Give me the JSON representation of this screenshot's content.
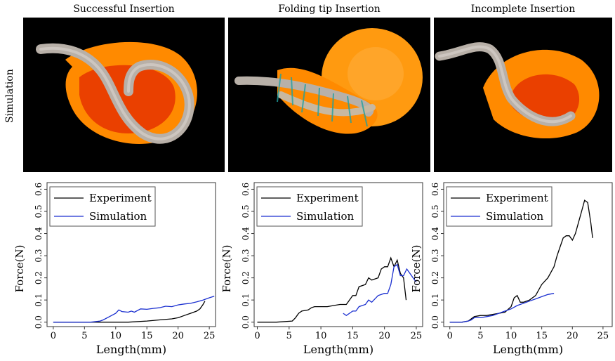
{
  "row_label": "Simulation",
  "panels": [
    {
      "title": "Successful Insertion"
    },
    {
      "title": "Folding tip Insertion"
    },
    {
      "title": "Incomplete Insertion"
    }
  ],
  "colors": {
    "experiment": "#000000",
    "simulation": "#1a2fd0",
    "tissue": "#ff8c00",
    "electrode": "#b8b0a8"
  },
  "chart_data": [
    {
      "type": "line",
      "xlabel": "Length(mm)",
      "ylabel": "Force(N)",
      "xlim": [
        -1,
        26
      ],
      "ylim": [
        -0.02,
        0.63
      ],
      "xticks": [
        0,
        5,
        10,
        15,
        20,
        25
      ],
      "yticks": [
        0.0,
        0.1,
        0.2,
        0.3,
        0.4,
        0.5,
        0.6
      ],
      "legend": "top-left",
      "series": [
        {
          "name": "Experiment",
          "x": [
            0,
            4,
            8,
            12,
            15,
            17,
            19,
            20,
            21,
            22,
            23,
            23.5,
            24,
            24.3
          ],
          "y": [
            0.0,
            0.0,
            0.0,
            0.0,
            0.005,
            0.01,
            0.015,
            0.02,
            0.03,
            0.04,
            0.05,
            0.06,
            0.08,
            0.095
          ]
        },
        {
          "name": "Simulation",
          "x": [
            0,
            3,
            6,
            7.5,
            8,
            9,
            10,
            10.5,
            11,
            12,
            12.5,
            13,
            14,
            15,
            16,
            17,
            18,
            19,
            20,
            21,
            22,
            23,
            24,
            25,
            25.8
          ],
          "y": [
            0.0,
            0.0,
            0.0,
            0.005,
            0.01,
            0.025,
            0.04,
            0.055,
            0.048,
            0.045,
            0.05,
            0.045,
            0.06,
            0.058,
            0.062,
            0.065,
            0.072,
            0.07,
            0.078,
            0.082,
            0.085,
            0.092,
            0.1,
            0.11,
            0.117
          ]
        }
      ]
    },
    {
      "type": "line",
      "xlabel": "Length(mm)",
      "ylabel": "Force(N)",
      "xlim": [
        -0.5,
        26
      ],
      "ylim": [
        -0.02,
        0.63
      ],
      "xticks": [
        0,
        5,
        10,
        15,
        20,
        25
      ],
      "yticks": [
        0.0,
        0.1,
        0.2,
        0.3,
        0.4,
        0.5,
        0.6
      ],
      "legend": "top-left",
      "series": [
        {
          "name": "Experiment",
          "x": [
            0,
            3,
            5.5,
            6,
            6.5,
            7,
            8,
            8.5,
            9,
            10,
            11,
            12,
            13,
            14,
            14.5,
            15,
            15.5,
            16,
            17,
            17.5,
            18,
            19,
            19.5,
            20,
            20.5,
            21,
            21.5,
            22,
            22.5,
            23,
            23.4
          ],
          "y": [
            0.0,
            0.0,
            0.005,
            0.02,
            0.04,
            0.05,
            0.055,
            0.065,
            0.07,
            0.07,
            0.07,
            0.075,
            0.08,
            0.08,
            0.1,
            0.12,
            0.12,
            0.16,
            0.17,
            0.2,
            0.19,
            0.2,
            0.24,
            0.25,
            0.25,
            0.29,
            0.25,
            0.28,
            0.22,
            0.2,
            0.1
          ]
        },
        {
          "name": "Simulation",
          "x": [
            13.5,
            14,
            14.5,
            15,
            15.5,
            16,
            17,
            17.5,
            18,
            19,
            20,
            20.5,
            21,
            21.5,
            22,
            22.5,
            23,
            23.5,
            24,
            24.5,
            25
          ],
          "y": [
            0.04,
            0.03,
            0.04,
            0.05,
            0.05,
            0.07,
            0.08,
            0.1,
            0.09,
            0.12,
            0.13,
            0.13,
            0.17,
            0.25,
            0.26,
            0.21,
            0.21,
            0.24,
            0.22,
            0.2,
            0.18
          ]
        }
      ]
    },
    {
      "type": "line",
      "xlabel": "Length(mm)",
      "ylabel": "Force(N)",
      "xlim": [
        -1,
        26.5
      ],
      "ylim": [
        -0.02,
        0.63
      ],
      "xticks": [
        0,
        5,
        10,
        15,
        20,
        25
      ],
      "yticks": [
        0.0,
        0.1,
        0.2,
        0.3,
        0.4,
        0.5,
        0.6
      ],
      "legend": "top-left",
      "series": [
        {
          "name": "Experiment",
          "x": [
            0,
            2,
            3,
            4,
            5,
            6,
            7,
            8,
            9,
            10,
            10.5,
            11,
            11.5,
            12,
            13,
            14,
            15,
            16,
            17,
            17.5,
            18,
            18.5,
            19,
            19.5,
            20,
            20.5,
            21,
            21.5,
            22,
            22.5,
            23,
            23.3
          ],
          "y": [
            0.0,
            0.0,
            0.005,
            0.025,
            0.03,
            0.03,
            0.035,
            0.04,
            0.045,
            0.07,
            0.11,
            0.12,
            0.09,
            0.09,
            0.1,
            0.12,
            0.17,
            0.2,
            0.25,
            0.3,
            0.34,
            0.38,
            0.39,
            0.39,
            0.37,
            0.4,
            0.45,
            0.5,
            0.55,
            0.54,
            0.45,
            0.38
          ]
        },
        {
          "name": "Simulation",
          "x": [
            0,
            2,
            3,
            3.5,
            4,
            5,
            6,
            7,
            8,
            9,
            10,
            11,
            12,
            13,
            14,
            15,
            16,
            17
          ],
          "y": [
            0.0,
            0.0,
            0.005,
            0.01,
            0.02,
            0.02,
            0.025,
            0.03,
            0.04,
            0.05,
            0.06,
            0.075,
            0.085,
            0.095,
            0.105,
            0.115,
            0.125,
            0.13
          ]
        }
      ]
    }
  ]
}
